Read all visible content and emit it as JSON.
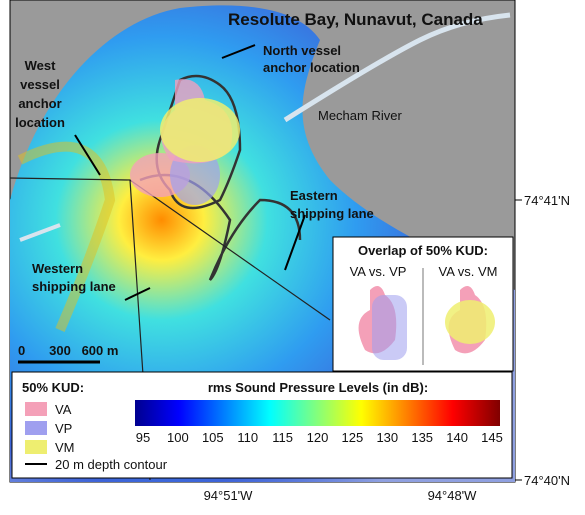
{
  "map": {
    "title": "Resolute Bay, Nunavut, Canada",
    "labels": {
      "north_anchor": [
        "North vessel",
        "anchor location"
      ],
      "west_anchor": [
        "West",
        "vessel",
        "anchor",
        "location"
      ],
      "river": "Mecham River",
      "eastern_lane": [
        "Eastern",
        "shipping lane"
      ],
      "western_lane": [
        "Western",
        "shipping lane"
      ]
    },
    "inset": {
      "title": "Overlap of 50% KUD:",
      "left": "VA vs. VP",
      "right": "VA vs. VM"
    },
    "scale_bar": [
      "0",
      "300",
      "600 m"
    ],
    "latitudes": [
      "74°41'N",
      "74°40'N"
    ],
    "longitudes": [
      "94°51'W",
      "94°48'W"
    ]
  },
  "legend": {
    "title": "50% KUD:",
    "items": [
      "VA",
      "VP",
      "VM"
    ],
    "contour": "20 m depth contour",
    "colorbar": {
      "title": "rms Sound Pressure Levels (in dB):",
      "ticks": [
        95,
        100,
        105,
        110,
        115,
        120,
        125,
        130,
        135,
        140,
        145
      ]
    }
  }
}
